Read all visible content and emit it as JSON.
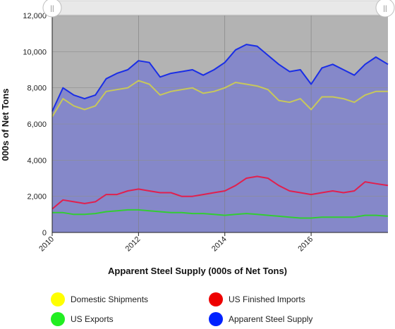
{
  "chart_data": {
    "type": "line",
    "title": "",
    "xlabel": "Apparent Steel Supply (000s of Net Tons)",
    "ylabel": "000s of Net Tons",
    "xlim": [
      2010.0,
      2017.78
    ],
    "ylim": [
      0,
      12000
    ],
    "x_ticks": [
      "2010",
      "2012",
      "2014",
      "2016"
    ],
    "y_ticks": [
      "0",
      "2,000",
      "4,000",
      "6,000",
      "8,000",
      "10,000",
      "12,000"
    ],
    "grid": true,
    "legend_position": "bottom",
    "x": [
      2010.0,
      2010.25,
      2010.5,
      2010.75,
      2011.0,
      2011.25,
      2011.5,
      2011.75,
      2012.0,
      2012.25,
      2012.5,
      2012.75,
      2013.0,
      2013.25,
      2013.5,
      2013.75,
      2014.0,
      2014.25,
      2014.5,
      2014.75,
      2015.0,
      2015.25,
      2015.5,
      2015.75,
      2016.0,
      2016.25,
      2016.5,
      2016.75,
      2017.0,
      2017.25,
      2017.5,
      2017.78
    ],
    "series": [
      {
        "name": "Domestic Shipments",
        "color": "#c8c85a",
        "values": [
          6400,
          7400,
          7000,
          6800,
          7000,
          7800,
          7900,
          8000,
          8400,
          8200,
          7600,
          7800,
          7900,
          8000,
          7700,
          7800,
          8000,
          8300,
          8200,
          8100,
          7900,
          7300,
          7200,
          7400,
          6800,
          7500,
          7500,
          7400,
          7200,
          7600,
          7800,
          7800
        ]
      },
      {
        "name": "US Finished Imports",
        "color": "#e0204e",
        "values": [
          1300,
          1800,
          1700,
          1600,
          1700,
          2100,
          2100,
          2300,
          2400,
          2300,
          2200,
          2200,
          2000,
          2000,
          2100,
          2200,
          2300,
          2600,
          3000,
          3100,
          3000,
          2600,
          2300,
          2200,
          2100,
          2200,
          2300,
          2200,
          2300,
          2800,
          2700,
          2600
        ]
      },
      {
        "name": "US Exports",
        "color": "#33cc33",
        "values": [
          1100,
          1100,
          1000,
          1000,
          1050,
          1150,
          1200,
          1250,
          1250,
          1200,
          1150,
          1100,
          1100,
          1050,
          1050,
          1000,
          950,
          1000,
          1050,
          1000,
          950,
          900,
          850,
          800,
          800,
          850,
          850,
          850,
          850,
          950,
          950,
          900
        ]
      },
      {
        "name": "Apparent Steel Supply",
        "color": "#1a2ee6",
        "values": [
          6700,
          8000,
          7600,
          7400,
          7600,
          8500,
          8800,
          9000,
          9500,
          9400,
          8600,
          8800,
          8900,
          9000,
          8700,
          9000,
          9400,
          10100,
          10400,
          10300,
          9800,
          9300,
          8900,
          9000,
          8200,
          9100,
          9300,
          9000,
          8700,
          9300,
          9700,
          9300
        ]
      }
    ]
  },
  "legend": [
    {
      "label": "Domestic Shipments",
      "color": "#ffff00"
    },
    {
      "label": "US Finished Imports",
      "color": "#ee0000"
    },
    {
      "label": "US Exports",
      "color": "#22ee22"
    },
    {
      "label": "Apparent Steel Supply",
      "color": "#0022ff"
    }
  ],
  "scroll_handle_glyph": "||"
}
